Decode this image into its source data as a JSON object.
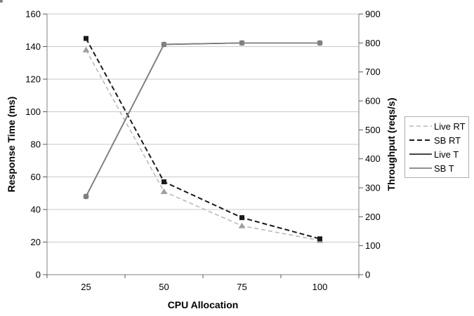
{
  "chart_data": {
    "type": "line",
    "title": "",
    "xlabel": "CPU Allocation",
    "ylabel_left": "Response Time (ms)",
    "ylabel_right": "Throughput (reqs/s)",
    "categories": [
      "25",
      "50",
      "75",
      "100"
    ],
    "left_axis": {
      "min": 0,
      "max": 160,
      "step": 20,
      "tick_labels": [
        "0",
        "20",
        "40",
        "60",
        "80",
        "100",
        "120",
        "140",
        "160"
      ]
    },
    "right_axis": {
      "min": 0,
      "max": 900,
      "step": 100,
      "tick_labels": [
        "0",
        "100",
        "200",
        "300",
        "400",
        "500",
        "600",
        "700",
        "800",
        "900"
      ]
    },
    "grid": true,
    "legend_position": "right",
    "colors": {
      "gridline": "#c9c9c9",
      "axis": "#808080",
      "tick": "#595959"
    },
    "series": [
      {
        "name": "Live RT",
        "axis": "left",
        "values": [
          138,
          51,
          30,
          21
        ],
        "color": "#b9b9b9",
        "marker": "triangle",
        "marker_color": "#9e9e9e",
        "dash": "6,4",
        "stroke_width": 1.6
      },
      {
        "name": "SB RT",
        "axis": "left",
        "values": [
          145,
          57,
          35,
          22
        ],
        "color": "#1a1a1a",
        "marker": "square",
        "marker_color": "#1a1a1a",
        "dash": "7,4",
        "stroke_width": 2
      },
      {
        "name": "Live T",
        "axis": "right",
        "values": [
          270,
          795,
          800,
          800
        ],
        "color": "#2b2b2b",
        "marker": "diamond",
        "marker_color": "#2b2b2b",
        "dash": "",
        "stroke_width": 1.7
      },
      {
        "name": "SB T",
        "axis": "right",
        "values": [
          270,
          795,
          800,
          800
        ],
        "color": "#808080",
        "marker": "square",
        "marker_color": "#808080",
        "dash": "",
        "stroke_width": 1.7
      }
    ]
  }
}
